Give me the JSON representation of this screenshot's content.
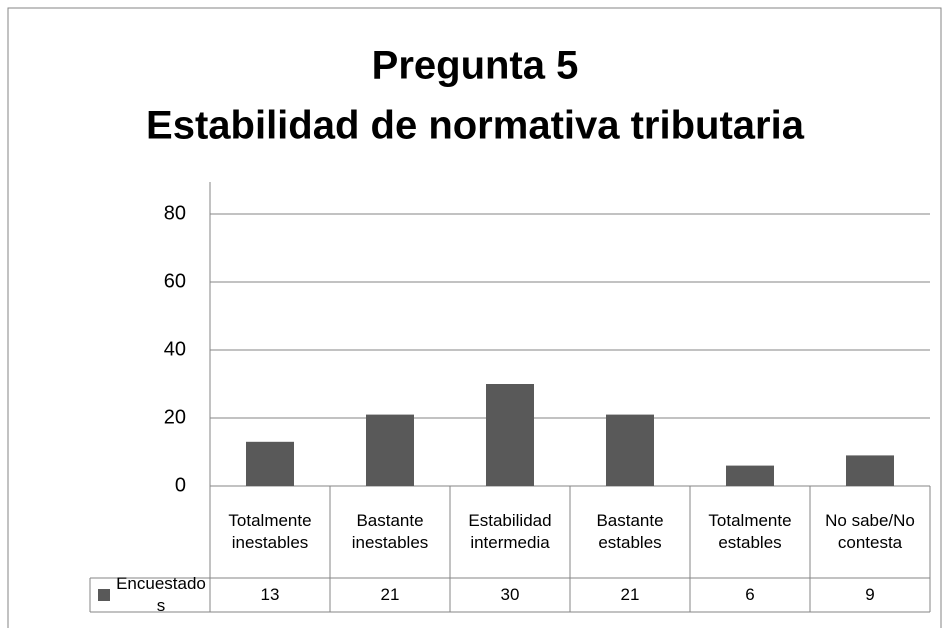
{
  "chart_data": {
    "type": "bar",
    "title": "Pregunta 5",
    "subtitle": "Estabilidad de normativa tributaria",
    "categories": [
      "Totalmente inestables",
      "Bastante inestables",
      "Estabilidad intermedia",
      "Bastante estables",
      "Totalmente estables",
      "No sabe/No contesta"
    ],
    "series": [
      {
        "name": "Encuestados",
        "color": "#595959",
        "values": [
          13,
          21,
          30,
          21,
          6,
          9
        ]
      }
    ],
    "ylim": [
      0,
      80
    ],
    "yticks": [
      0,
      20,
      40,
      60,
      80
    ],
    "grid": true,
    "legend": "table"
  }
}
